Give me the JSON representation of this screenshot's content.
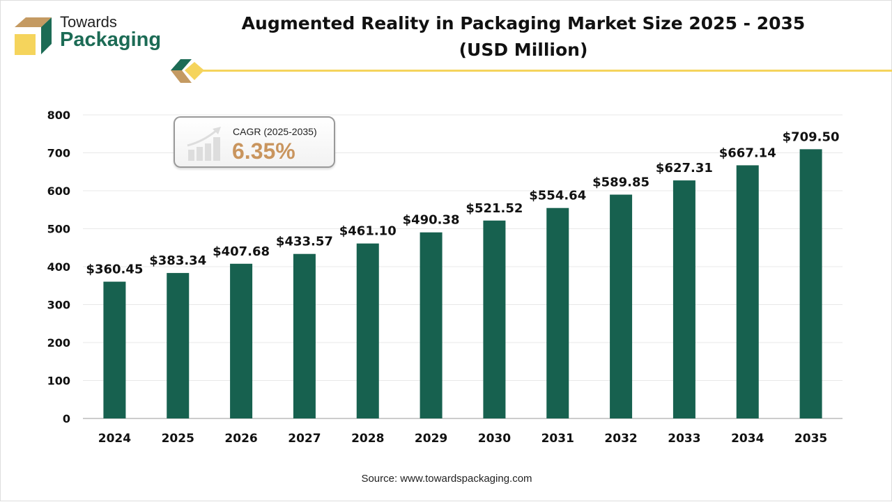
{
  "brand": {
    "line1": "Towards",
    "line2": "Packaging"
  },
  "title_line1": "Augmented Reality in Packaging Market Size 2025 - 2035",
  "title_line2": "(USD Million)",
  "cagr": {
    "label": "CAGR (2025-2035)",
    "value": "6.35%",
    "icon": "growth-chart-icon"
  },
  "source": "Source: www.towardspackaging.com",
  "colors": {
    "bar": "#17614f",
    "accent": "#f5d45c",
    "cagr_value": "#c9955e",
    "brand_green": "#1c6b55",
    "brand_tan": "#c49a62"
  },
  "chart_data": {
    "type": "bar",
    "title": "Augmented Reality in Packaging Market Size 2025 - 2035 (USD Million)",
    "categories": [
      "2024",
      "2025",
      "2026",
      "2027",
      "2028",
      "2029",
      "2030",
      "2031",
      "2032",
      "2033",
      "2034",
      "2035"
    ],
    "values": [
      360.45,
      383.34,
      407.68,
      433.57,
      461.1,
      490.38,
      521.52,
      554.64,
      589.85,
      627.31,
      667.14,
      709.5
    ],
    "data_labels": [
      "$360.45",
      "$383.34",
      "$407.68",
      "$433.57",
      "$461.10",
      "$490.38",
      "$521.52",
      "$554.64",
      "$589.85",
      "$627.31",
      "$667.14",
      "$709.50"
    ],
    "yticks": [
      "0",
      "100",
      "200",
      "300",
      "400",
      "500",
      "600",
      "700",
      "800"
    ],
    "ylim": [
      0,
      800
    ],
    "grid": true,
    "xlabel": "",
    "ylabel": ""
  }
}
